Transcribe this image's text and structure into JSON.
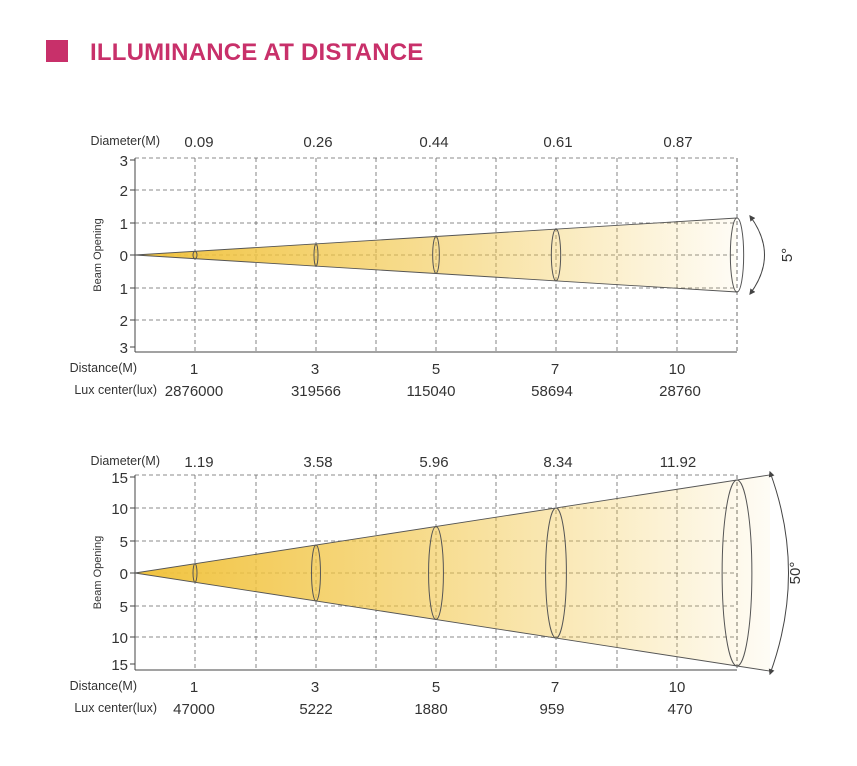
{
  "header": {
    "title": "ILLUMINANCE AT DISTANCE",
    "accent_color": "#c8306a"
  },
  "beam_color": "#f1c33e",
  "diagrams": [
    {
      "beam_angle_label": "5°",
      "diameter_label": "Diameter(M)",
      "y_axis_label": "Beam Opening",
      "y_ticks": [
        "3",
        "2",
        "1",
        "0",
        "1",
        "2",
        "3"
      ],
      "y_max": 3,
      "distance_label": "Distance(M)",
      "lux_label": "Lux center(lux)",
      "distances": [
        "1",
        "3",
        "5",
        "7",
        "10"
      ],
      "diameters": [
        "0.09",
        "0.26",
        "0.44",
        "0.61",
        "0.87"
      ],
      "lux": [
        "2876000",
        "319566",
        "115040",
        "58694",
        "28760"
      ]
    },
    {
      "beam_angle_label": "50°",
      "diameter_label": "Diameter(M)",
      "y_axis_label": "Beam Opening",
      "y_ticks": [
        "15",
        "10",
        "5",
        "0",
        "5",
        "10",
        "15"
      ],
      "y_max": 15,
      "distance_label": "Distance(M)",
      "lux_label": "Lux center(lux)",
      "distances": [
        "1",
        "3",
        "5",
        "7",
        "10"
      ],
      "diameters": [
        "1.19",
        "3.58",
        "5.96",
        "8.34",
        "11.92"
      ],
      "lux": [
        "47000",
        "5222",
        "1880",
        "959",
        "470"
      ]
    }
  ]
}
